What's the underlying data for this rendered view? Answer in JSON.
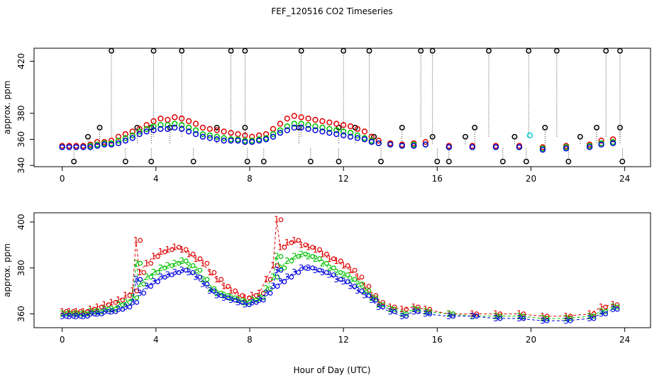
{
  "title": "FEF_120516  CO2 Timeseries",
  "xlabel": "Hour of Day (UTC)",
  "colors": {
    "series1": "#e00000",
    "series2": "#00c000",
    "series3": "#0000e0",
    "outlier": "#000000",
    "flag": "#00d0d0"
  },
  "chart_data": [
    {
      "type": "scatter",
      "ylabel": "approx. ppm",
      "xlim": [
        -1.2,
        25.1
      ],
      "ylim": [
        339,
        430
      ],
      "xticks": [
        0,
        4,
        8,
        12,
        16,
        20,
        24
      ],
      "yticks": [
        340,
        360,
        380,
        420
      ],
      "series": [
        {
          "name": "1",
          "color": "#e00000",
          "x": [
            0,
            0.3,
            0.6,
            0.9,
            1.2,
            1.5,
            1.8,
            2.1,
            2.4,
            2.7,
            3.0,
            3.3,
            3.6,
            3.9,
            4.2,
            4.5,
            4.8,
            5.1,
            5.4,
            5.7,
            6.0,
            6.3,
            6.6,
            6.9,
            7.2,
            7.5,
            7.8,
            8.1,
            8.4,
            8.7,
            9.0,
            9.3,
            9.6,
            9.9,
            10.2,
            10.5,
            10.8,
            11.1,
            11.4,
            11.7,
            12.0,
            12.3,
            12.6,
            12.9,
            13.2,
            13.5,
            14.0,
            14.5,
            15.0,
            15.5,
            16.5,
            17.5,
            18.5,
            19.5,
            20.5,
            21.5,
            22.5,
            23.0,
            23.5
          ],
          "y": [
            355,
            355,
            355,
            355,
            356,
            358,
            358,
            359,
            362,
            364,
            366,
            368,
            371,
            374,
            376,
            375,
            377,
            376,
            374,
            372,
            369,
            368,
            367,
            366,
            365,
            364,
            363,
            362,
            363,
            364,
            368,
            372,
            376,
            378,
            377,
            376,
            375,
            374,
            373,
            372,
            371,
            370,
            368,
            366,
            362,
            359,
            357,
            356,
            357,
            358,
            355,
            355,
            355,
            355,
            354,
            355,
            356,
            359,
            360
          ]
        },
        {
          "name": "2",
          "color": "#00c000",
          "x": [
            0,
            0.3,
            0.6,
            0.9,
            1.2,
            1.5,
            1.8,
            2.1,
            2.4,
            2.7,
            3.0,
            3.3,
            3.6,
            3.9,
            4.2,
            4.5,
            4.8,
            5.1,
            5.4,
            5.7,
            6.0,
            6.3,
            6.6,
            6.9,
            7.2,
            7.5,
            7.8,
            8.1,
            8.4,
            8.7,
            9.0,
            9.3,
            9.6,
            9.9,
            10.2,
            10.5,
            10.8,
            11.1,
            11.4,
            11.7,
            12.0,
            12.3,
            12.6,
            12.9,
            13.2,
            13.5,
            14.0,
            14.5,
            15.0,
            15.5,
            16.5,
            17.5,
            18.5,
            19.5,
            20.5,
            21.5,
            22.5,
            23.0,
            23.5
          ],
          "y": [
            354,
            354,
            354,
            354,
            355,
            356,
            357,
            357,
            359,
            361,
            363,
            366,
            368,
            370,
            371,
            371,
            372,
            371,
            369,
            367,
            364,
            363,
            362,
            361,
            360,
            360,
            359,
            359,
            360,
            361,
            364,
            367,
            370,
            372,
            372,
            371,
            370,
            369,
            368,
            367,
            366,
            365,
            363,
            361,
            359,
            357,
            356,
            355,
            356,
            356,
            354,
            354,
            354,
            354,
            353,
            354,
            355,
            357,
            358
          ]
        },
        {
          "name": "3",
          "color": "#0000e0",
          "x": [
            0,
            0.3,
            0.6,
            0.9,
            1.2,
            1.5,
            1.8,
            2.1,
            2.4,
            2.7,
            3.0,
            3.3,
            3.6,
            3.9,
            4.2,
            4.5,
            4.8,
            5.1,
            5.4,
            5.7,
            6.0,
            6.3,
            6.6,
            6.9,
            7.2,
            7.5,
            7.8,
            8.1,
            8.4,
            8.7,
            9.0,
            9.3,
            9.6,
            9.9,
            10.2,
            10.5,
            10.8,
            11.1,
            11.4,
            11.7,
            12.0,
            12.3,
            12.6,
            12.9,
            13.2,
            13.5,
            14.0,
            14.5,
            15.0,
            15.5,
            16.5,
            17.5,
            18.5,
            19.5,
            20.5,
            21.5,
            22.5,
            23.0,
            23.5
          ],
          "y": [
            354,
            354,
            354,
            354,
            354,
            355,
            356,
            356,
            357,
            359,
            361,
            364,
            366,
            367,
            368,
            368,
            369,
            368,
            366,
            364,
            362,
            361,
            360,
            359,
            359,
            359,
            358,
            358,
            359,
            360,
            362,
            365,
            367,
            369,
            369,
            368,
            367,
            366,
            365,
            364,
            363,
            362,
            361,
            360,
            358,
            357,
            356,
            355,
            355,
            356,
            354,
            354,
            354,
            354,
            352,
            353,
            354,
            356,
            357
          ]
        }
      ],
      "outliers": {
        "color": "#000000",
        "top_x": [
          2.1,
          3.9,
          5.1,
          7.2,
          7.8,
          10.2,
          12.0,
          13.1,
          15.3,
          15.8,
          18.2,
          19.9,
          21.1,
          23.2,
          23.8
        ],
        "top_y": 428,
        "mid_x": [
          1.1,
          1.6,
          3.2,
          3.8,
          4.6,
          6.6,
          7.8,
          10.1,
          11.8,
          12.5,
          13.3,
          14.5,
          15.8,
          17.2,
          17.6,
          19.3,
          20.6,
          22.1,
          22.8,
          23.8
        ],
        "mid_y": [
          362,
          369,
          369,
          369,
          369,
          369,
          369,
          369,
          369,
          369,
          362,
          369,
          362,
          362,
          369,
          362,
          369,
          362,
          369,
          369
        ],
        "bottom_x": [
          0.5,
          2.7,
          3.8,
          5.6,
          7.9,
          8.6,
          10.6,
          11.8,
          13.6,
          16.0,
          16.5,
          18.8,
          19.8,
          21.6,
          23.9
        ],
        "bottom_y": 343
      },
      "flag_point": {
        "x": 19.95,
        "y": 363,
        "color": "#00d0d0"
      }
    },
    {
      "type": "scatter",
      "ylabel": "approx. ppm",
      "xlim": [
        -1.2,
        25.1
      ],
      "ylim": [
        354,
        404
      ],
      "xticks": [
        0,
        4,
        8,
        12,
        16,
        20,
        24
      ],
      "yticks": [
        360,
        380,
        400
      ],
      "series": [
        {
          "name": "1",
          "symbol": "1",
          "color": "#e00000",
          "x": [
            0,
            0.3,
            0.6,
            0.9,
            1.2,
            1.5,
            1.8,
            2.1,
            2.4,
            2.7,
            3.0,
            3.15,
            3.3,
            3.6,
            3.9,
            4.2,
            4.5,
            4.8,
            5.1,
            5.4,
            5.7,
            6.0,
            6.3,
            6.6,
            6.9,
            7.2,
            7.5,
            7.8,
            8.1,
            8.4,
            8.7,
            9.0,
            9.15,
            9.3,
            9.6,
            9.9,
            10.2,
            10.5,
            10.8,
            11.1,
            11.4,
            11.7,
            12.0,
            12.3,
            12.6,
            12.9,
            13.2,
            13.5,
            14.0,
            14.5,
            15.0,
            15.5,
            16.5,
            17.5,
            18.5,
            19.5,
            20.5,
            21.5,
            22.5,
            23.0,
            23.5
          ],
          "y": [
            361,
            361,
            361,
            361,
            362,
            363,
            364,
            365,
            366,
            368,
            370,
            392,
            378,
            382,
            385,
            387,
            388,
            389,
            388,
            386,
            384,
            382,
            378,
            375,
            372,
            370,
            368,
            367,
            368,
            369,
            375,
            381,
            401,
            389,
            391,
            392,
            390,
            389,
            388,
            386,
            384,
            383,
            381,
            379,
            376,
            372,
            368,
            365,
            363,
            362,
            363,
            362,
            360,
            360,
            360,
            360,
            359,
            359,
            360,
            363,
            364
          ]
        },
        {
          "name": "2",
          "symbol": "2",
          "color": "#00c000",
          "x": [
            0,
            0.3,
            0.6,
            0.9,
            1.2,
            1.5,
            1.8,
            2.1,
            2.4,
            2.7,
            3.0,
            3.15,
            3.3,
            3.6,
            3.9,
            4.2,
            4.5,
            4.8,
            5.1,
            5.4,
            5.7,
            6.0,
            6.3,
            6.6,
            6.9,
            7.2,
            7.5,
            7.8,
            8.1,
            8.4,
            8.7,
            9.0,
            9.15,
            9.3,
            9.6,
            9.9,
            10.2,
            10.5,
            10.8,
            11.1,
            11.4,
            11.7,
            12.0,
            12.3,
            12.6,
            12.9,
            13.2,
            13.5,
            14.0,
            14.5,
            15.0,
            15.5,
            16.5,
            17.5,
            18.5,
            19.5,
            20.5,
            21.5,
            22.5,
            23.0,
            23.5
          ],
          "y": [
            360,
            360,
            360,
            360,
            361,
            361,
            362,
            362,
            364,
            365,
            367,
            382,
            373,
            376,
            378,
            380,
            381,
            382,
            383,
            381,
            379,
            375,
            371,
            369,
            368,
            367,
            366,
            365,
            366,
            367,
            371,
            376,
            385,
            380,
            383,
            385,
            386,
            385,
            384,
            382,
            380,
            378,
            377,
            375,
            373,
            370,
            367,
            364,
            362,
            360,
            362,
            361,
            360,
            359,
            359,
            359,
            358,
            358,
            359,
            361,
            363
          ]
        },
        {
          "name": "3",
          "symbol": "3",
          "color": "#0000e0",
          "x": [
            0,
            0.3,
            0.6,
            0.9,
            1.2,
            1.5,
            1.8,
            2.1,
            2.4,
            2.7,
            3.0,
            3.15,
            3.3,
            3.6,
            3.9,
            4.2,
            4.5,
            4.8,
            5.1,
            5.4,
            5.7,
            6.0,
            6.3,
            6.6,
            6.9,
            7.2,
            7.5,
            7.8,
            8.1,
            8.4,
            8.7,
            9.0,
            9.15,
            9.3,
            9.6,
            9.9,
            10.2,
            10.5,
            10.8,
            11.1,
            11.4,
            11.7,
            12.0,
            12.3,
            12.6,
            12.9,
            13.2,
            13.5,
            14.0,
            14.5,
            15.0,
            15.5,
            16.5,
            17.5,
            18.5,
            19.5,
            20.5,
            21.5,
            22.5,
            23.0,
            23.5
          ],
          "y": [
            359,
            359,
            359,
            359,
            360,
            360,
            361,
            361,
            362,
            363,
            365,
            375,
            369,
            372,
            374,
            376,
            377,
            378,
            379,
            378,
            376,
            373,
            370,
            368,
            367,
            366,
            365,
            364,
            365,
            366,
            369,
            372,
            379,
            374,
            376,
            378,
            380,
            380,
            379,
            378,
            377,
            375,
            374,
            372,
            370,
            368,
            366,
            363,
            361,
            359,
            361,
            360,
            359,
            359,
            358,
            358,
            357,
            357,
            358,
            360,
            362
          ]
        }
      ]
    }
  ]
}
